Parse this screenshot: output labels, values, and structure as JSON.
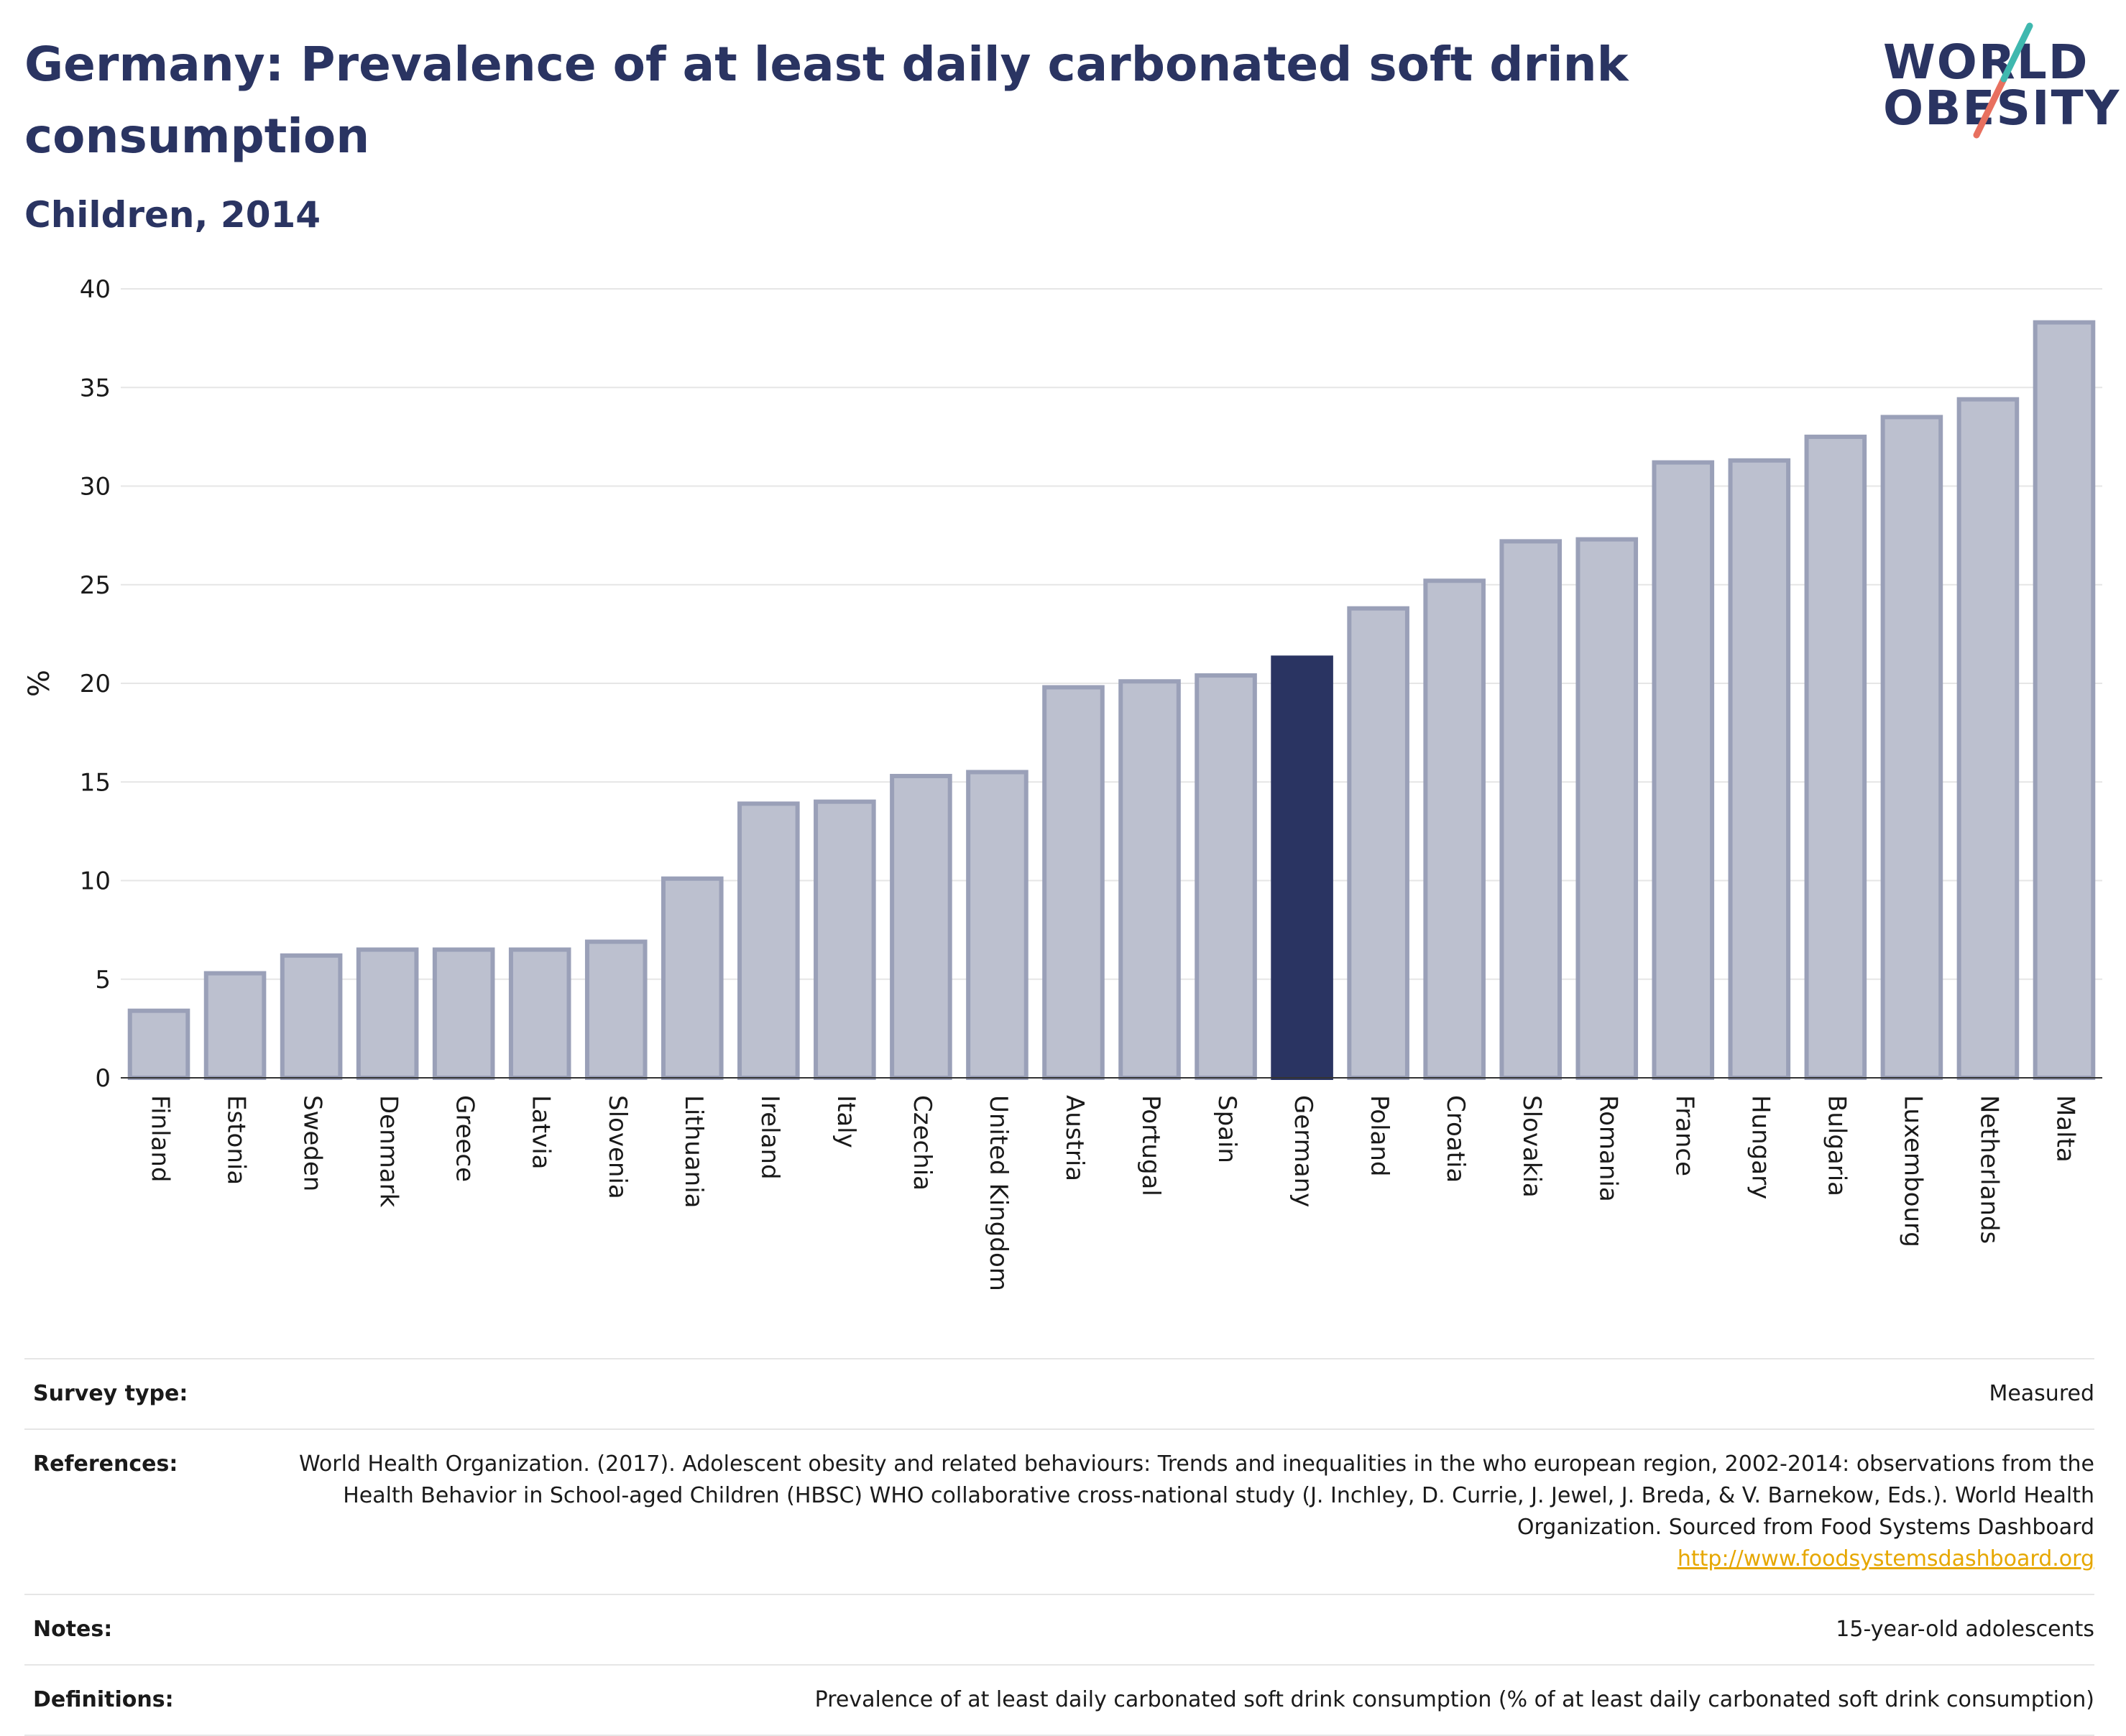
{
  "title": "Germany: Prevalence of at least daily carbonated soft drink consumption",
  "subtitle": "Children, 2014",
  "logo": {
    "line1": "WORLD",
    "line2": "OBESITY"
  },
  "colors": {
    "highlight": "#2a3462",
    "bar": "#bcc0cf",
    "bar_border": "#9aa0b8",
    "title": "#2a3462",
    "link": "#e6a700",
    "grid": "#e6e6e6"
  },
  "chart_data": {
    "type": "bar",
    "ylabel": "%",
    "xlabel": "",
    "ylim": [
      0,
      40
    ],
    "yticks": [
      0,
      5,
      10,
      15,
      20,
      25,
      30,
      35,
      40
    ],
    "grid": true,
    "highlight": "Germany",
    "categories": [
      "Finland",
      "Estonia",
      "Sweden",
      "Denmark",
      "Greece",
      "Latvia",
      "Slovenia",
      "Lithuania",
      "Ireland",
      "Italy",
      "Czechia",
      "United Kingdom",
      "Austria",
      "Portugal",
      "Spain",
      "Germany",
      "Poland",
      "Croatia",
      "Slovakia",
      "Romania",
      "France",
      "Hungary",
      "Bulgaria",
      "Luxembourg",
      "Netherlands",
      "Malta"
    ],
    "values": [
      3.4,
      5.3,
      6.2,
      6.5,
      6.5,
      6.5,
      6.9,
      10.1,
      13.9,
      14.0,
      15.3,
      15.5,
      19.8,
      20.1,
      20.4,
      21.3,
      23.8,
      25.2,
      27.2,
      27.3,
      31.2,
      31.3,
      32.5,
      33.5,
      34.4,
      38.3
    ]
  },
  "meta": [
    {
      "label": "Survey type:",
      "value": "Measured"
    },
    {
      "label": "References:",
      "value": "World Health Organization. (2017). Adolescent obesity and related behaviours: Trends and inequalities in the who european region, 2002-2014: observations from the Health Behavior in School-aged Children (HBSC) WHO collaborative cross-national study (J. Inchley, D. Currie, J. Jewel, J. Breda, & V. Barnekow, Eds.). World Health Organization. Sourced from Food Systems Dashboard",
      "link": "http://www.foodsystemsdashboard.org"
    },
    {
      "label": "Notes:",
      "value": "15-year-old adolescents"
    },
    {
      "label": "Definitions:",
      "value": "Prevalence of at least daily carbonated soft drink consumption (% of at least daily carbonated soft drink consumption)"
    }
  ]
}
